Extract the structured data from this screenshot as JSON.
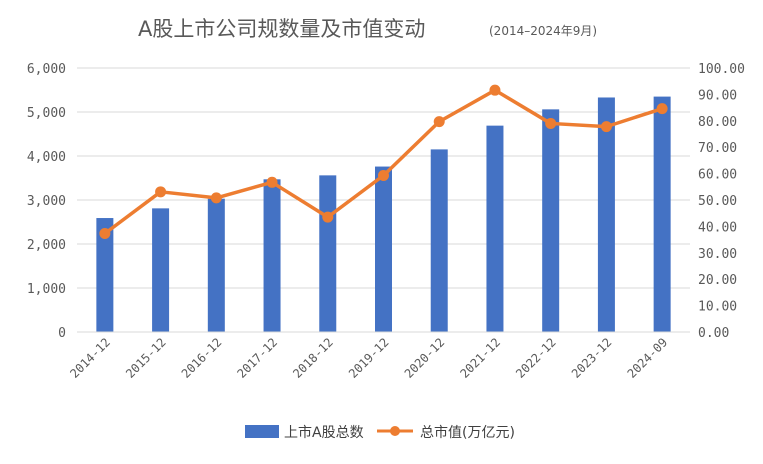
{
  "chart_data": {
    "type": "bar+line",
    "title": "A股上市公司规数量及市值变动",
    "subtitle": "(2014–2024年9月)",
    "categories": [
      "2014-12",
      "2015-12",
      "2016-12",
      "2017-12",
      "2018-12",
      "2019-12",
      "2020-12",
      "2021-12",
      "2022-12",
      "2023-12",
      "2024-09"
    ],
    "series": [
      {
        "name": "上市A股总数",
        "type": "bar",
        "axis": "left",
        "color": "#4472C4",
        "values": [
          2590,
          2810,
          3030,
          3470,
          3560,
          3760,
          4150,
          4690,
          5060,
          5330,
          5350
        ]
      },
      {
        "name": "总市值(万亿元)",
        "type": "line",
        "axis": "right",
        "color": "#ED7D31",
        "values": [
          37.3,
          53.1,
          50.8,
          56.7,
          43.5,
          59.3,
          79.7,
          91.6,
          79.0,
          77.8,
          84.6
        ]
      }
    ],
    "y_left": {
      "min": 0,
      "max": 6000,
      "ticks": [
        "0",
        "1,000",
        "2,000",
        "3,000",
        "4,000",
        "5,000",
        "6,000"
      ]
    },
    "y_right": {
      "min": 0,
      "max": 100,
      "ticks": [
        "0.00",
        "10.00",
        "20.00",
        "30.00",
        "40.00",
        "50.00",
        "60.00",
        "70.00",
        "80.00",
        "90.00",
        "100.00"
      ]
    },
    "grid": true,
    "legend_position": "bottom"
  }
}
